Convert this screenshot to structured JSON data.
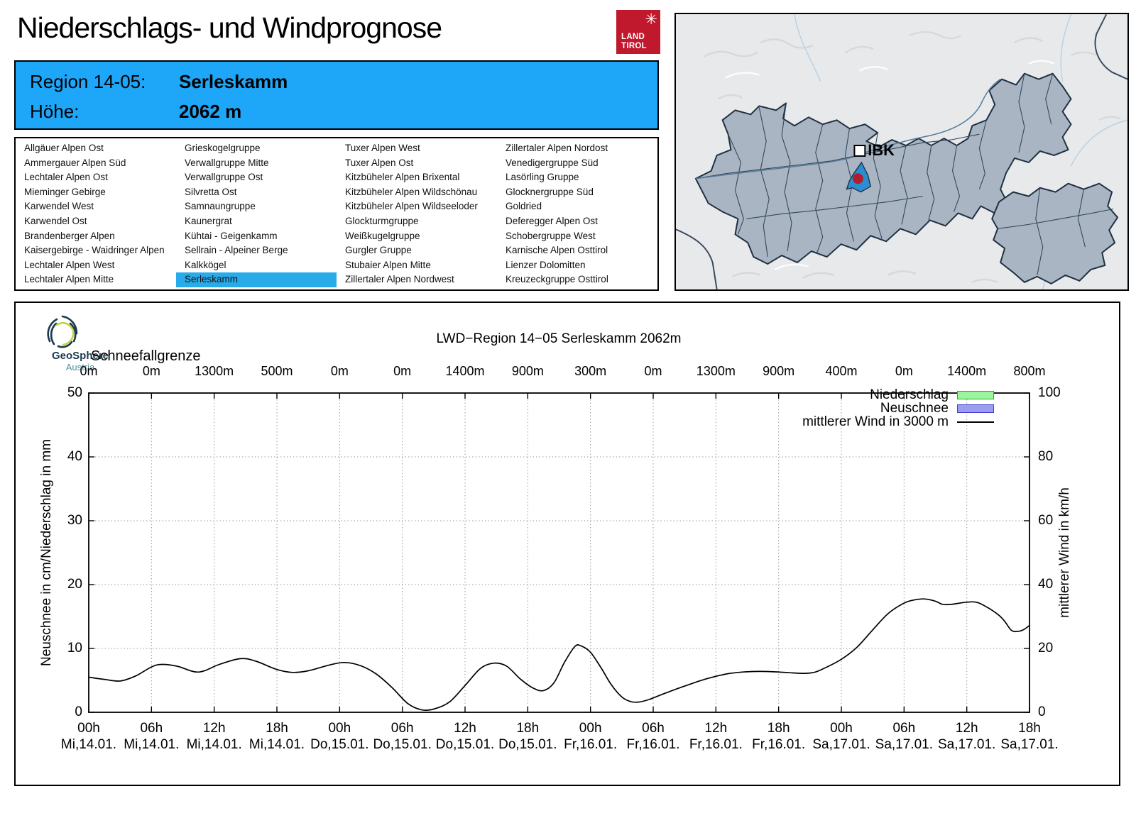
{
  "header": {
    "title": "Niederschlags- und Windprognose",
    "logo": {
      "line1": "LAND",
      "line2": "TIROL",
      "bg_color": "#c0182c",
      "emblem": "tirol-eagle"
    }
  },
  "region_header": {
    "region_label": "Region 14-05:",
    "region_value": "Serleskamm",
    "altitude_label": "Höhe:",
    "altitude_value": "2062 m",
    "bg_color": "#1ea6f8"
  },
  "region_table": {
    "selected": "Serleskamm",
    "highlight_color": "#29abe9",
    "columns": [
      [
        "Allgäuer Alpen Ost",
        "Ammergauer Alpen Süd",
        "Lechtaler Alpen Ost",
        "Mieminger Gebirge",
        "Karwendel West",
        "Karwendel Ost",
        "Brandenberger Alpen",
        "Kaisergebirge - Waidringer Alpen",
        "Lechtaler Alpen West",
        "Lechtaler Alpen Mitte"
      ],
      [
        "Grieskogelgruppe",
        "Verwallgruppe Mitte",
        "Verwallgruppe Ost",
        "Silvretta Ost",
        "Samnaungruppe",
        "Kaunergrat",
        "Kühtai - Geigenkamm",
        "Sellrain - Alpeiner Berge",
        "Kalkkögel",
        "Serleskamm"
      ],
      [
        "Tuxer Alpen West",
        "Tuxer Alpen Ost",
        "Kitzbüheler Alpen Brixental",
        "Kitzbüheler Alpen Wildschönau",
        "Kitzbüheler Alpen Wildseeloder",
        "Glockturmgruppe",
        "Weißkugelgruppe",
        "Gurgler Gruppe",
        "Stubaier Alpen Mitte",
        "Zillertaler Alpen Nordwest"
      ],
      [
        "Zillertaler Alpen Nordost",
        "Venedigergruppe Süd",
        "Lasörling Gruppe",
        "Glocknergruppe Süd",
        "Goldried",
        "Deferegger Alpen Ost",
        "Schobergruppe West",
        "Karnische Alpen Osttirol",
        "Lienzer Dolomitten",
        "Kreuzeckgruppe Osttirol"
      ]
    ]
  },
  "map": {
    "city_label": "IBK",
    "selected_region": "Serleskamm",
    "highlight_color": "#2b8ed3",
    "marker_color": "#b01e2a",
    "land_color": "#a9b5c2"
  },
  "geosphere_logo": {
    "line1": "GeoSphere",
    "line2": "Austria"
  },
  "chart_data": {
    "type": "line",
    "title": "LWD−Region 14−05 Serleskamm 2062m",
    "snowline_label": "Schneefallgrenze",
    "snowline_values": [
      "0m",
      "0m",
      "1300m",
      "500m",
      "0m",
      "0m",
      "1400m",
      "900m",
      "300m",
      "0m",
      "1300m",
      "900m",
      "400m",
      "0m",
      "1400m",
      "800m"
    ],
    "x_ticks": {
      "hours": [
        "00h",
        "06h",
        "12h",
        "18h",
        "00h",
        "06h",
        "12h",
        "18h",
        "00h",
        "06h",
        "12h",
        "18h",
        "00h",
        "06h",
        "12h",
        "18h"
      ],
      "dates": [
        "Mi,14.01.",
        "Mi,14.01.",
        "Mi,14.01.",
        "Mi,14.01.",
        "Do,15.01.",
        "Do,15.01.",
        "Do,15.01.",
        "Do,15.01.",
        "Fr,16.01.",
        "Fr,16.01.",
        "Fr,16.01.",
        "Fr,16.01.",
        "Sa,17.01.",
        "Sa,17.01.",
        "Sa,17.01.",
        "Sa,17.01."
      ]
    },
    "x_total_hours": 90,
    "ylabel_left": "Neuschnee in cm/Niederschlag in mm",
    "ylabel_right": "mittlerer Wind in km/h",
    "yticks_left": [
      0,
      10,
      20,
      30,
      40,
      50
    ],
    "yticks_right": [
      0,
      20,
      40,
      60,
      80,
      100
    ],
    "ylim_left": [
      0,
      50
    ],
    "ylim_right": [
      0,
      100
    ],
    "grid": "dotted",
    "legend_position": "top-right-inside",
    "legend": [
      {
        "label": "Niederschlag",
        "swatch": "rect",
        "fill": "#9cf59c",
        "border": "#1fb41f"
      },
      {
        "label": "Neuschnee",
        "swatch": "rect",
        "fill": "#9c9cf0",
        "border": "#4040d0"
      },
      {
        "label": "mittlerer Wind in 3000 m",
        "swatch": "line",
        "color": "#000000"
      }
    ],
    "series": [
      {
        "name": "Niederschlag",
        "type": "bar",
        "axis": "left",
        "unit": "mm",
        "color": "#9cf59c",
        "points": []
      },
      {
        "name": "Neuschnee",
        "type": "bar",
        "axis": "left",
        "unit": "cm",
        "color": "#9c9cf0",
        "points": []
      },
      {
        "name": "mittlerer Wind in 3000 m",
        "type": "line",
        "axis": "right",
        "unit": "km/h",
        "color": "#000000",
        "points_hour_kmh": [
          [
            0,
            11.0
          ],
          [
            1.5,
            10.3
          ],
          [
            3,
            9.8
          ],
          [
            4.5,
            11.4
          ],
          [
            6,
            14.2
          ],
          [
            7,
            15.0
          ],
          [
            8.5,
            14.4
          ],
          [
            10.5,
            12.6
          ],
          [
            12.5,
            15.0
          ],
          [
            14.5,
            16.8
          ],
          [
            16,
            16.0
          ],
          [
            18,
            13.4
          ],
          [
            19.5,
            12.5
          ],
          [
            21,
            13.0
          ],
          [
            23,
            14.8
          ],
          [
            24.5,
            15.6
          ],
          [
            26,
            14.6
          ],
          [
            27.5,
            12.0
          ],
          [
            29,
            7.8
          ],
          [
            30.5,
            2.8
          ],
          [
            31.8,
            0.8
          ],
          [
            33,
            1.0
          ],
          [
            34.5,
            3.2
          ],
          [
            36,
            8.4
          ],
          [
            37.5,
            13.8
          ],
          [
            38.8,
            15.4
          ],
          [
            40,
            14.4
          ],
          [
            41.3,
            10.4
          ],
          [
            42.5,
            7.6
          ],
          [
            43.5,
            6.8
          ],
          [
            44.5,
            9.2
          ],
          [
            45.5,
            15.6
          ],
          [
            46.5,
            20.6
          ],
          [
            47.1,
            20.8
          ],
          [
            48,
            18.8
          ],
          [
            49,
            14.0
          ],
          [
            50,
            8.6
          ],
          [
            51,
            4.8
          ],
          [
            51.8,
            3.4
          ],
          [
            52.6,
            3.2
          ],
          [
            53.6,
            4.0
          ],
          [
            55,
            5.8
          ],
          [
            57,
            8.2
          ],
          [
            59,
            10.4
          ],
          [
            61,
            12.0
          ],
          [
            62.5,
            12.6
          ],
          [
            64,
            12.8
          ],
          [
            65.5,
            12.7
          ],
          [
            67,
            12.4
          ],
          [
            68.5,
            12.2
          ],
          [
            69.5,
            12.6
          ],
          [
            70.5,
            14.0
          ],
          [
            72,
            16.6
          ],
          [
            73.5,
            20.4
          ],
          [
            75,
            25.8
          ],
          [
            76.5,
            31.0
          ],
          [
            78,
            34.2
          ],
          [
            79,
            35.2
          ],
          [
            80,
            35.5
          ],
          [
            81,
            34.8
          ],
          [
            81.7,
            33.8
          ],
          [
            82.5,
            33.8
          ],
          [
            84,
            34.5
          ],
          [
            85,
            34.4
          ],
          [
            86,
            32.8
          ],
          [
            87,
            30.6
          ],
          [
            87.6,
            28.6
          ],
          [
            88.3,
            25.6
          ],
          [
            89,
            25.4
          ],
          [
            89.5,
            26.0
          ],
          [
            90,
            27.2
          ]
        ]
      }
    ]
  }
}
